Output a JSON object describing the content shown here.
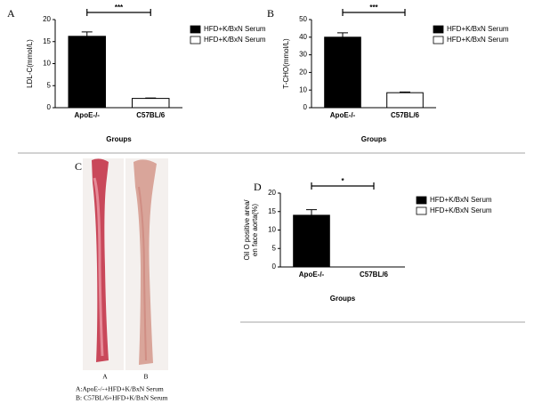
{
  "chart_data": [
    {
      "type": "bar",
      "panel": "A",
      "y_label": [
        "LDL-C(mmol/L)"
      ],
      "x_label": "Groups",
      "categories": [
        "ApoE-/-",
        "C57BL/6"
      ],
      "series": [
        {
          "name": "HFD+K/BxN Serum",
          "color": "#000000",
          "values": [
            16.2,
            null
          ],
          "errors": [
            1.0,
            null
          ]
        },
        {
          "name": "HFD+K/BxN Serum",
          "color": "#ffffff",
          "values": [
            null,
            2.1
          ],
          "errors": [
            null,
            0.1
          ]
        }
      ],
      "ylim": [
        0,
        20
      ],
      "yticks": [
        0,
        5,
        10,
        15,
        20
      ],
      "significance": "***"
    },
    {
      "type": "bar",
      "panel": "B",
      "y_label": [
        "T-CHO(mmol/L)"
      ],
      "x_label": "Groups",
      "categories": [
        "ApoE-/-",
        "C57BL/6"
      ],
      "series": [
        {
          "name": "HFD+K/BxN Serum",
          "color": "#000000",
          "values": [
            40,
            null
          ],
          "errors": [
            2.5,
            null
          ]
        },
        {
          "name": "HFD+K/BxN Serum",
          "color": "#ffffff",
          "values": [
            null,
            8.5
          ],
          "errors": [
            null,
            0.4
          ]
        }
      ],
      "ylim": [
        0,
        50
      ],
      "yticks": [
        0,
        10,
        20,
        30,
        40,
        50
      ],
      "significance": "***"
    },
    {
      "type": "bar",
      "panel": "D",
      "y_label": [
        "Oil O positive area/",
        "en face aorta(%)"
      ],
      "x_label": "Groups",
      "categories": [
        "ApoE-/-",
        "C57BL/6"
      ],
      "series": [
        {
          "name": "HFD+K/BxN Serum",
          "color": "#000000",
          "values": [
            14,
            null
          ],
          "errors": [
            1.5,
            null
          ]
        },
        {
          "name": "HFD+K/BxN Serum",
          "color": "#ffffff",
          "values": [
            null,
            0
          ],
          "errors": [
            null,
            0
          ]
        }
      ],
      "ylim": [
        0,
        20
      ],
      "yticks": [
        0,
        5,
        10,
        15,
        20
      ],
      "significance": "*"
    }
  ],
  "photo_panel": {
    "panel": "C",
    "labels": [
      "A",
      "B"
    ],
    "caption": [
      "A:ApoE-/-+HFD+K/BxN  Serum",
      "B: C57BL/6+HFD+K/BxN  Serum"
    ]
  }
}
